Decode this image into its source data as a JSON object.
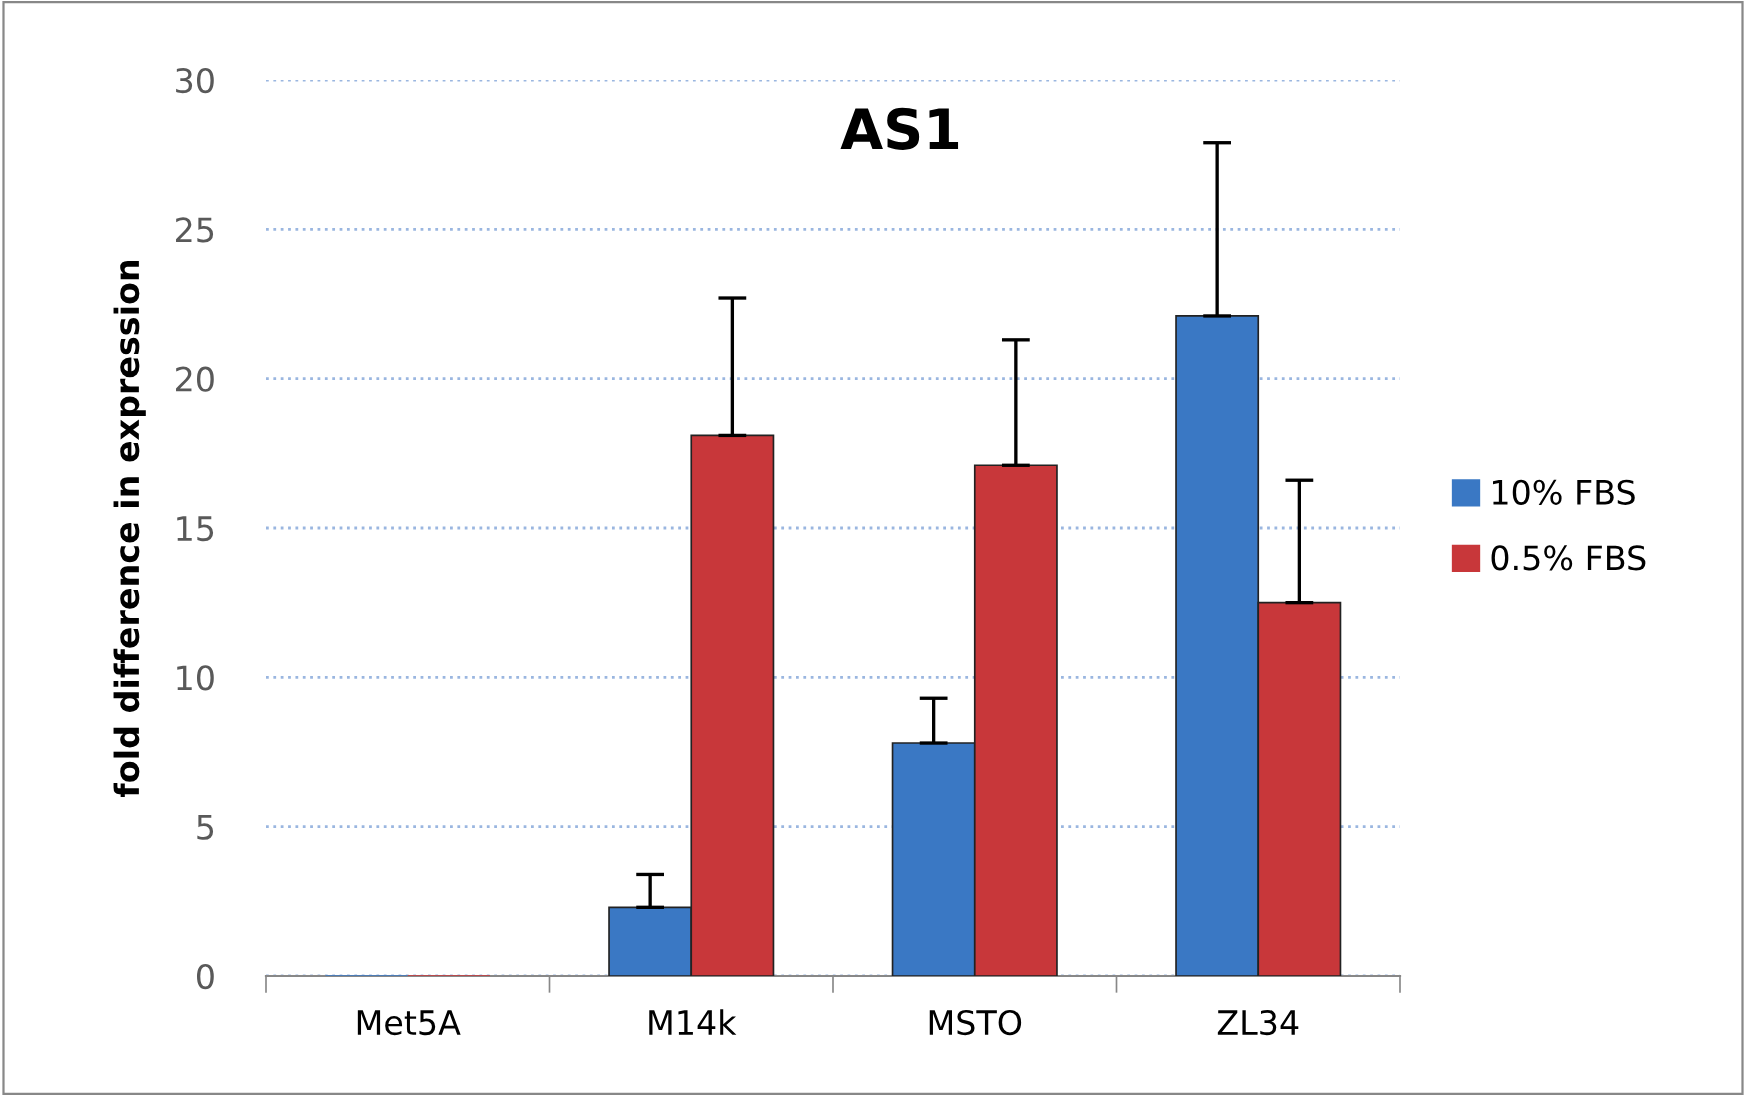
{
  "chart_data": {
    "type": "bar",
    "title": "AS1",
    "ylabel": "fold difference in expression",
    "categories": [
      "Met5A",
      "M14k",
      "MSTO",
      "ZL34"
    ],
    "series": [
      {
        "name": "10% FBS",
        "color": "#3a78c4",
        "values": [
          0,
          2.3,
          7.8,
          22.1
        ],
        "errors": [
          null,
          1.1,
          1.5,
          5.8
        ]
      },
      {
        "name": "0.5% FBS",
        "color": "#c8373a",
        "values": [
          0,
          18.1,
          17.1,
          12.5
        ],
        "errors": [
          null,
          4.6,
          4.2,
          4.1
        ]
      }
    ],
    "ylim": [
      0,
      30
    ],
    "yticks": [
      0,
      5,
      10,
      15,
      20,
      25,
      30
    ],
    "grid": "y",
    "legend": "right"
  }
}
